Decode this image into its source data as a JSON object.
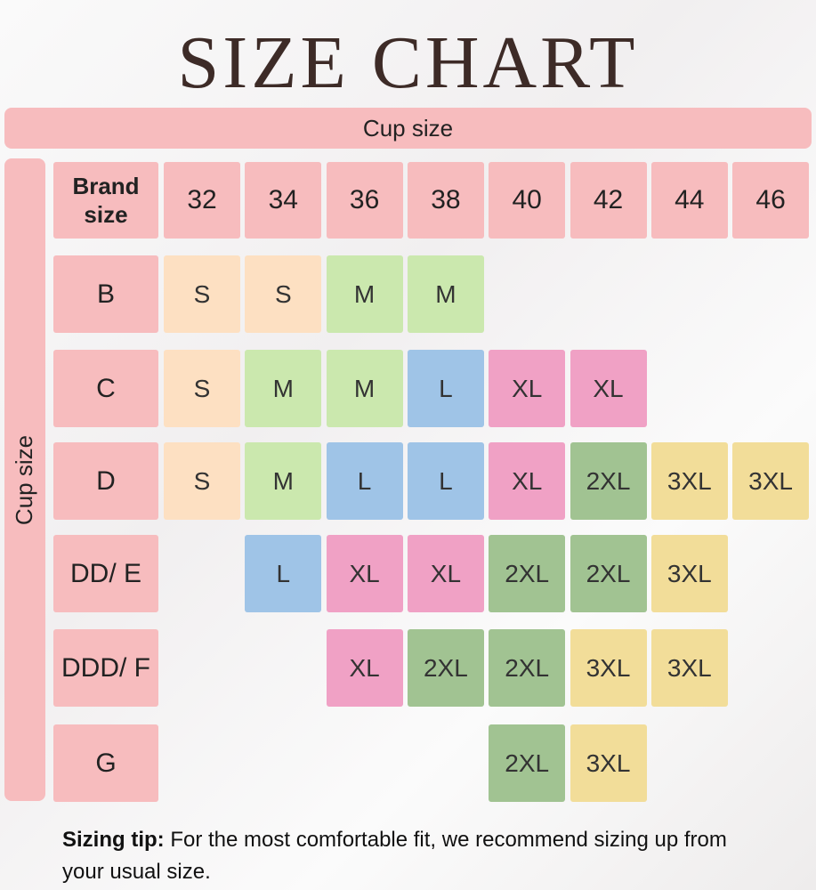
{
  "title": "SIZE CHART",
  "top_label": "Cup size",
  "side_label": "Cup size",
  "table": {
    "corner": "Brand size",
    "columns": [
      "32",
      "34",
      "36",
      "38",
      "40",
      "42",
      "44",
      "46"
    ],
    "rows": [
      {
        "label": "B",
        "cells": [
          "S",
          "S",
          "M",
          "M",
          null,
          null,
          null,
          null
        ]
      },
      {
        "label": "C",
        "cells": [
          "S",
          "M",
          "M",
          "L",
          "XL",
          "XL",
          null,
          null
        ]
      },
      {
        "label": "D",
        "cells": [
          "S",
          "M",
          "L",
          "L",
          "XL",
          "2XL",
          "3XL",
          "3XL"
        ]
      },
      {
        "label": "DD/ E",
        "cells": [
          null,
          "L",
          "XL",
          "XL",
          "2XL",
          "2XL",
          "3XL",
          null
        ]
      },
      {
        "label": "DDD/ F",
        "cells": [
          null,
          null,
          "XL",
          "2XL",
          "2XL",
          "3XL",
          "3XL",
          null
        ]
      },
      {
        "label": "G",
        "cells": [
          null,
          null,
          null,
          null,
          "2XL",
          "3XL",
          null,
          null
        ]
      }
    ],
    "size_colors": {
      "S": "#fde0c2",
      "M": "#cbe8ae",
      "L": "#9fc4e7",
      "XL": "#f0a1c5",
      "2XL": "#a1c392",
      "3XL": "#f2dd99"
    }
  },
  "tip": {
    "label": "Sizing tip:",
    "text": "For the most comfortable fit, we recommend sizing up from your usual size."
  }
}
